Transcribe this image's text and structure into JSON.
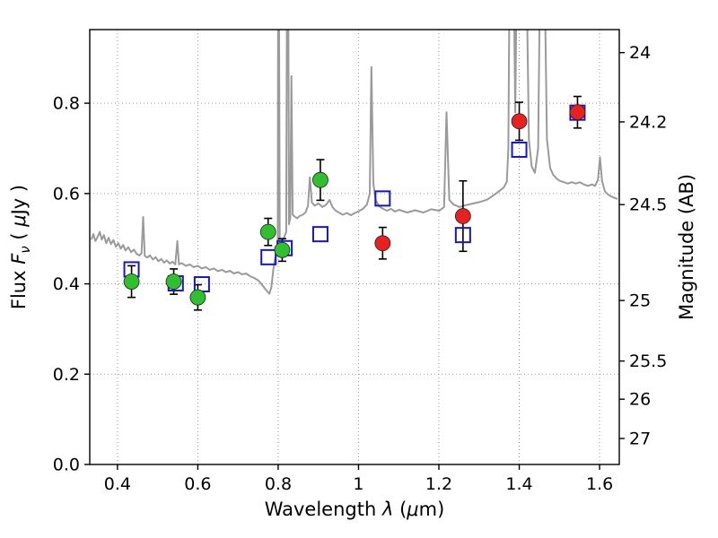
{
  "chart_data": {
    "type": "line+scatter",
    "title": "",
    "xlabel": "Wavelength  λ (μm)",
    "ylabel": "Flux  Fν  ( μJy )",
    "right_axis_label": "Magnitude (AB)",
    "xlabel_parts": [
      {
        "text": "Wavelength  ",
        "italic": false
      },
      {
        "text": "λ",
        "italic": true
      },
      {
        "text": " (",
        "italic": false
      },
      {
        "text": "μ",
        "italic": true
      },
      {
        "text": "m)",
        "italic": false
      }
    ],
    "ylabel_parts": [
      {
        "text": "Flux  ",
        "italic": false
      },
      {
        "text": "F",
        "italic": true
      },
      {
        "text": "ν",
        "italic": true,
        "dy": 5,
        "size": 15
      },
      {
        "text": "  ( ",
        "italic": false,
        "dy": -5,
        "size": 21
      },
      {
        "text": "μ",
        "italic": true
      },
      {
        "text": "Jy )",
        "italic": false
      }
    ],
    "xlim": [
      0.331,
      1.649
    ],
    "ylim": [
      0.0,
      0.963
    ],
    "x_ticks": [
      0.4,
      0.6,
      0.8,
      1.0,
      1.2,
      1.4,
      1.6
    ],
    "x_tick_labels": [
      "0.4",
      "0.6",
      "0.8",
      "1",
      "1.2",
      "1.4",
      "1.6"
    ],
    "y_ticks": [
      0.0,
      0.2,
      0.4,
      0.6,
      0.8
    ],
    "y_tick_labels": [
      "0.0",
      "0.2",
      "0.4",
      "0.6",
      "0.8"
    ],
    "right_ticks": [
      24,
      24.2,
      24.5,
      25,
      25.5,
      26,
      27
    ],
    "right_tick_labels": [
      "24",
      "24.2",
      "24.5",
      "25",
      "25.5",
      "26",
      "27"
    ],
    "magnitude_zeropoint": 23.9,
    "grid": true,
    "legend": "none",
    "colors": {
      "spectrum": "#9a9a9a",
      "green_points": "#2fbf2f",
      "red_points": "#e82020",
      "blue_squares": "#1515cc",
      "grid": "#999999",
      "axis": "#000000",
      "error_bar": "#000000"
    },
    "spectrum": {
      "name": "galaxy-spectrum",
      "color": "#9a9a9a",
      "points": [
        [
          0.335,
          0.498
        ],
        [
          0.34,
          0.51
        ],
        [
          0.345,
          0.495
        ],
        [
          0.35,
          0.503
        ],
        [
          0.356,
          0.515
        ],
        [
          0.361,
          0.498
        ],
        [
          0.366,
          0.508
        ],
        [
          0.372,
          0.49
        ],
        [
          0.378,
          0.502
        ],
        [
          0.384,
          0.488
        ],
        [
          0.39,
          0.497
        ],
        [
          0.396,
          0.482
        ],
        [
          0.402,
          0.49
        ],
        [
          0.408,
          0.478
        ],
        [
          0.414,
          0.486
        ],
        [
          0.42,
          0.474
        ],
        [
          0.427,
          0.481
        ],
        [
          0.434,
          0.47
        ],
        [
          0.441,
          0.476
        ],
        [
          0.448,
          0.466
        ],
        [
          0.455,
          0.463
        ],
        [
          0.46,
          0.468
        ],
        [
          0.464,
          0.548
        ],
        [
          0.468,
          0.462
        ],
        [
          0.474,
          0.458
        ],
        [
          0.481,
          0.463
        ],
        [
          0.488,
          0.454
        ],
        [
          0.495,
          0.459
        ],
        [
          0.502,
          0.45
        ],
        [
          0.509,
          0.455
        ],
        [
          0.516,
          0.447
        ],
        [
          0.523,
          0.452
        ],
        [
          0.53,
          0.445
        ],
        [
          0.537,
          0.449
        ],
        [
          0.544,
          0.443
        ],
        [
          0.549,
          0.495
        ],
        [
          0.553,
          0.443
        ],
        [
          0.56,
          0.446
        ],
        [
          0.57,
          0.44
        ],
        [
          0.58,
          0.443
        ],
        [
          0.59,
          0.437
        ],
        [
          0.6,
          0.44
        ],
        [
          0.61,
          0.434
        ],
        [
          0.62,
          0.437
        ],
        [
          0.63,
          0.431
        ],
        [
          0.64,
          0.434
        ],
        [
          0.65,
          0.428
        ],
        [
          0.66,
          0.431
        ],
        [
          0.67,
          0.426
        ],
        [
          0.68,
          0.429
        ],
        [
          0.69,
          0.423
        ],
        [
          0.7,
          0.426
        ],
        [
          0.71,
          0.421
        ],
        [
          0.72,
          0.423
        ],
        [
          0.73,
          0.417
        ],
        [
          0.74,
          0.413
        ],
        [
          0.75,
          0.408
        ],
        [
          0.758,
          0.4
        ],
        [
          0.765,
          0.392
        ],
        [
          0.772,
          0.384
        ],
        [
          0.778,
          0.378
        ],
        [
          0.783,
          0.392
        ],
        [
          0.788,
          0.432
        ],
        [
          0.792,
          0.456
        ],
        [
          0.796,
          0.466
        ],
        [
          0.799,
          0.471
        ],
        [
          0.8,
          1.1
        ],
        [
          0.802,
          1.1
        ],
        [
          0.804,
          0.478
        ],
        [
          0.808,
          0.487
        ],
        [
          0.812,
          0.497
        ],
        [
          0.816,
          0.506
        ],
        [
          0.82,
          0.515
        ],
        [
          0.822,
          1.1
        ],
        [
          0.825,
          1.1
        ],
        [
          0.827,
          0.532
        ],
        [
          0.83,
          0.546
        ],
        [
          0.833,
          0.86
        ],
        [
          0.836,
          0.553
        ],
        [
          0.841,
          0.549
        ],
        [
          0.847,
          0.545
        ],
        [
          0.853,
          0.55
        ],
        [
          0.861,
          0.553
        ],
        [
          0.868,
          0.558
        ],
        [
          0.874,
          0.572
        ],
        [
          0.879,
          0.636
        ],
        [
          0.884,
          0.58
        ],
        [
          0.891,
          0.573
        ],
        [
          0.9,
          0.578
        ],
        [
          0.91,
          0.57
        ],
        [
          0.92,
          0.576
        ],
        [
          0.928,
          0.586
        ],
        [
          0.935,
          0.57
        ],
        [
          0.943,
          0.562
        ],
        [
          0.951,
          0.558
        ],
        [
          0.961,
          0.553
        ],
        [
          0.971,
          0.557
        ],
        [
          0.981,
          0.552
        ],
        [
          0.991,
          0.557
        ],
        [
          1.001,
          0.561
        ],
        [
          1.011,
          0.566
        ],
        [
          1.021,
          0.576
        ],
        [
          1.028,
          0.6
        ],
        [
          1.032,
          0.88
        ],
        [
          1.037,
          0.622
        ],
        [
          1.043,
          0.585
        ],
        [
          1.051,
          0.572
        ],
        [
          1.061,
          0.566
        ],
        [
          1.071,
          0.562
        ],
        [
          1.081,
          0.566
        ],
        [
          1.091,
          0.56
        ],
        [
          1.101,
          0.564
        ],
        [
          1.121,
          0.558
        ],
        [
          1.141,
          0.563
        ],
        [
          1.161,
          0.558
        ],
        [
          1.181,
          0.565
        ],
        [
          1.201,
          0.562
        ],
        [
          1.213,
          0.57
        ],
        [
          1.219,
          0.78
        ],
        [
          1.226,
          0.586
        ],
        [
          1.236,
          0.576
        ],
        [
          1.251,
          0.57
        ],
        [
          1.266,
          0.574
        ],
        [
          1.281,
          0.577
        ],
        [
          1.301,
          0.581
        ],
        [
          1.321,
          0.587
        ],
        [
          1.336,
          0.596
        ],
        [
          1.351,
          0.606
        ],
        [
          1.361,
          0.613
        ],
        [
          1.369,
          0.626
        ],
        [
          1.373,
          0.7
        ],
        [
          1.376,
          1.1
        ],
        [
          1.386,
          1.1
        ],
        [
          1.39,
          0.78
        ],
        [
          1.394,
          1.1
        ],
        [
          1.418,
          1.1
        ],
        [
          1.424,
          0.72
        ],
        [
          1.431,
          0.66
        ],
        [
          1.439,
          0.646
        ],
        [
          1.447,
          0.7
        ],
        [
          1.452,
          1.1
        ],
        [
          1.463,
          1.1
        ],
        [
          1.469,
          0.72
        ],
        [
          1.477,
          0.656
        ],
        [
          1.485,
          0.641
        ],
        [
          1.493,
          0.633
        ],
        [
          1.501,
          0.628
        ],
        [
          1.511,
          0.625
        ],
        [
          1.521,
          0.622
        ],
        [
          1.531,
          0.625
        ],
        [
          1.541,
          0.622
        ],
        [
          1.551,
          0.625
        ],
        [
          1.561,
          0.62
        ],
        [
          1.571,
          0.617
        ],
        [
          1.581,
          0.62
        ],
        [
          1.589,
          0.617
        ],
        [
          1.596,
          0.631
        ],
        [
          1.601,
          0.68
        ],
        [
          1.606,
          0.628
        ],
        [
          1.613,
          0.605
        ],
        [
          1.622,
          0.597
        ],
        [
          1.632,
          0.592
        ],
        [
          1.645,
          0.588
        ]
      ]
    },
    "series": [
      {
        "name": "observed-photometry-green",
        "marker": "circle",
        "color": "#2fbf2f",
        "points_format": "[wavelength_um, flux_uJy, flux_err]",
        "points": [
          [
            0.435,
            0.405,
            0.035
          ],
          [
            0.54,
            0.405,
            0.028
          ],
          [
            0.6,
            0.37,
            0.028
          ],
          [
            0.775,
            0.515,
            0.03
          ],
          [
            0.81,
            0.475,
            0.025
          ],
          [
            0.905,
            0.63,
            0.045
          ]
        ]
      },
      {
        "name": "observed-photometry-red",
        "marker": "circle",
        "color": "#e82020",
        "points_format": "[wavelength_um, flux_uJy, flux_err]",
        "points": [
          [
            1.06,
            0.49,
            0.035
          ],
          [
            1.26,
            0.55,
            0.078
          ],
          [
            1.4,
            0.76,
            0.042
          ],
          [
            1.545,
            0.78,
            0.035
          ]
        ]
      },
      {
        "name": "model-photometry-squares",
        "marker": "square-open",
        "color": "#1515cc",
        "points_format": "[wavelength_um, flux_uJy]",
        "points": [
          [
            0.435,
            0.432
          ],
          [
            0.545,
            0.401
          ],
          [
            0.61,
            0.399
          ],
          [
            0.776,
            0.459
          ],
          [
            0.816,
            0.479
          ],
          [
            0.905,
            0.51
          ],
          [
            1.06,
            0.589
          ],
          [
            1.26,
            0.508
          ],
          [
            1.4,
            0.697
          ],
          [
            1.545,
            0.779
          ]
        ]
      }
    ]
  }
}
